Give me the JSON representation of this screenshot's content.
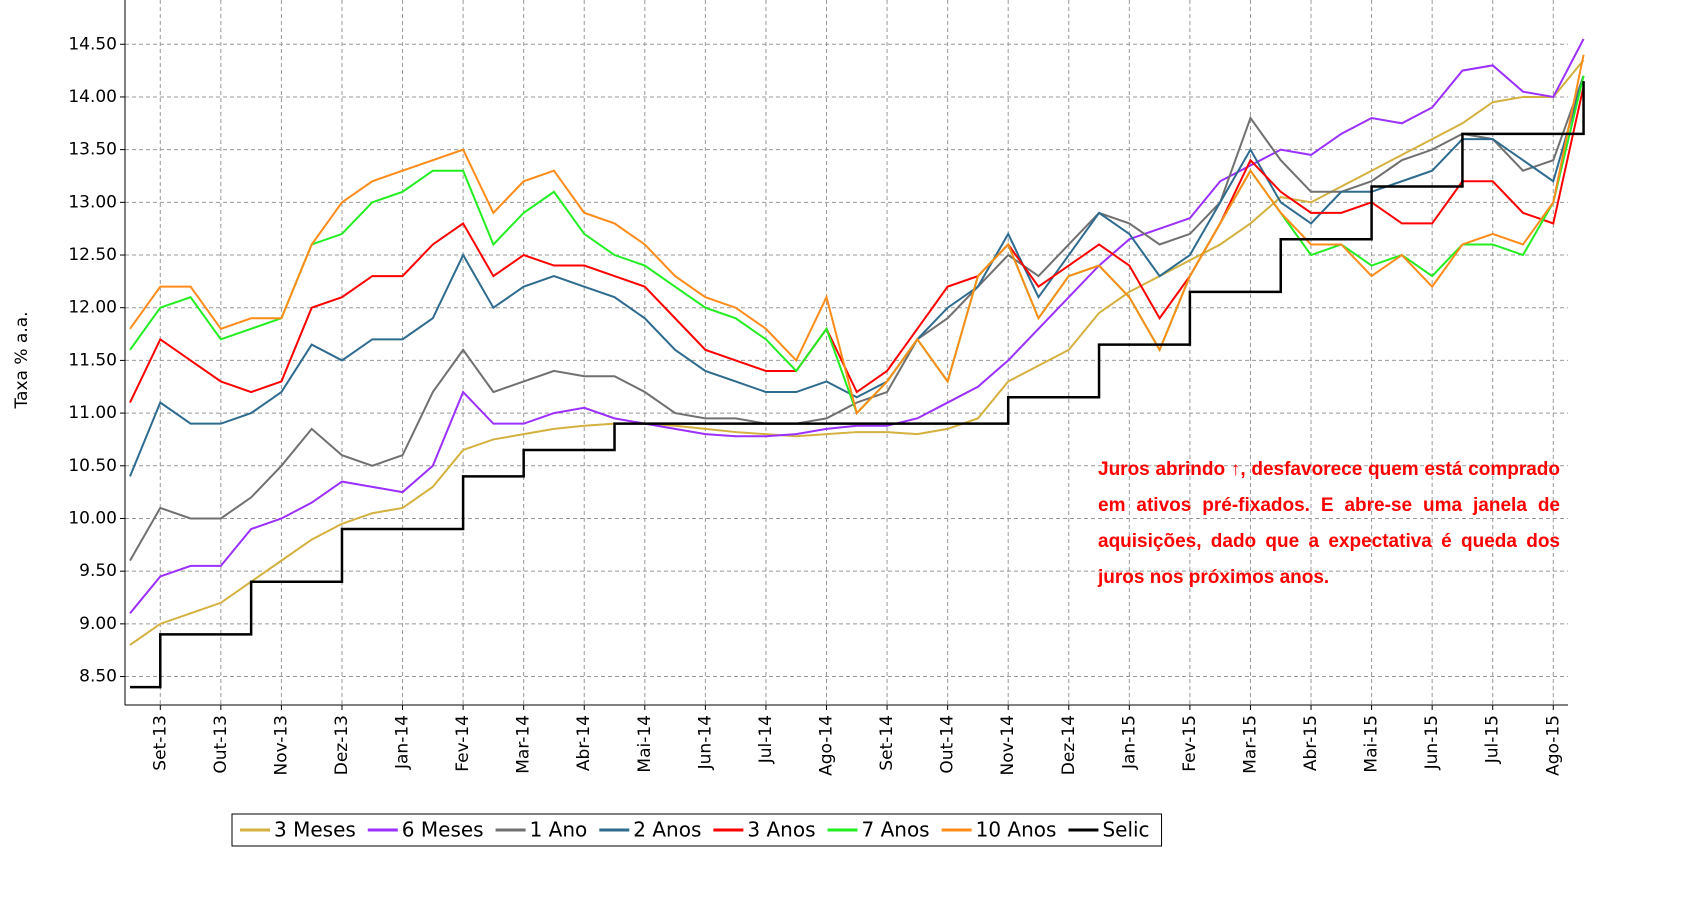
{
  "chart_data": {
    "type": "line",
    "ylabel": "Taxa % a.a.",
    "annotation": "Juros abrindo ↑, desfavorece quem está comprado em ativos pré-fixados. E abre-se uma janela de aquisições, dado que a expectativa é queda dos juros nos próximos anos.",
    "categories": [
      null,
      "Set-13",
      null,
      "Out-13",
      null,
      "Nov-13",
      null,
      "Dez-13",
      null,
      "Jan-14",
      null,
      "Fev-14",
      null,
      "Mar-14",
      null,
      "Abr-14",
      null,
      "Mai-14",
      null,
      "Jun-14",
      null,
      "Jul-14",
      null,
      "Ago-14",
      null,
      "Set-14",
      null,
      "Out-14",
      null,
      "Nov-14",
      null,
      "Dez-14",
      null,
      "Jan-15",
      null,
      "Fev-15",
      null,
      "Mar-15",
      null,
      "Abr-15",
      null,
      "Mai-15",
      null,
      "Jun-15",
      null,
      "Jul-15",
      null,
      "Ago-15",
      null
    ],
    "series": [
      {
        "name": "3 Meses",
        "color": "#d4b13f",
        "values": [
          8.8,
          9.0,
          9.1,
          9.2,
          9.4,
          9.6,
          9.8,
          9.95,
          10.05,
          10.1,
          10.3,
          10.65,
          10.75,
          10.8,
          10.85,
          10.88,
          10.9,
          10.9,
          10.88,
          10.85,
          10.82,
          10.8,
          10.78,
          10.8,
          10.82,
          10.82,
          10.8,
          10.85,
          10.95,
          11.3,
          11.45,
          11.6,
          11.95,
          12.15,
          12.3,
          12.45,
          12.6,
          12.8,
          13.05,
          13.0,
          13.15,
          13.3,
          13.45,
          13.6,
          13.75,
          13.95,
          14.0,
          14.0,
          14.35
        ]
      },
      {
        "name": "6 Meses",
        "color": "#9b30ff",
        "values": [
          9.1,
          9.45,
          9.55,
          9.55,
          9.9,
          10.0,
          10.15,
          10.35,
          10.3,
          10.25,
          10.5,
          11.2,
          10.9,
          10.9,
          11.0,
          11.05,
          10.95,
          10.9,
          10.85,
          10.8,
          10.78,
          10.78,
          10.8,
          10.85,
          10.88,
          10.88,
          10.95,
          11.1,
          11.25,
          11.5,
          11.8,
          12.1,
          12.4,
          12.65,
          12.75,
          12.85,
          13.2,
          13.35,
          13.5,
          13.45,
          13.65,
          13.8,
          13.75,
          13.9,
          14.25,
          14.3,
          14.05,
          14.0,
          14.55
        ]
      },
      {
        "name": "1 Ano",
        "color": "#707070",
        "values": [
          9.6,
          10.1,
          10.0,
          10.0,
          10.2,
          10.5,
          10.85,
          10.6,
          10.5,
          10.6,
          11.2,
          11.6,
          11.2,
          11.3,
          11.4,
          11.35,
          11.35,
          11.2,
          11.0,
          10.95,
          10.95,
          10.9,
          10.9,
          10.95,
          11.1,
          11.2,
          11.7,
          11.9,
          12.2,
          12.5,
          12.3,
          12.6,
          12.9,
          12.8,
          12.6,
          12.7,
          13.0,
          13.8,
          13.4,
          13.1,
          13.1,
          13.2,
          13.4,
          13.5,
          13.65,
          13.6,
          13.3,
          13.4,
          14.2
        ]
      },
      {
        "name": "2 Anos",
        "color": "#2e6b8f",
        "values": [
          10.4,
          11.1,
          10.9,
          10.9,
          11.0,
          11.2,
          11.65,
          11.5,
          11.7,
          11.7,
          11.9,
          12.5,
          12.0,
          12.2,
          12.3,
          12.2,
          12.1,
          11.9,
          11.6,
          11.4,
          11.3,
          11.2,
          11.2,
          11.3,
          11.15,
          11.3,
          11.7,
          12.0,
          12.2,
          12.7,
          12.1,
          12.5,
          12.9,
          12.7,
          12.3,
          12.5,
          13.0,
          13.5,
          13.0,
          12.8,
          13.1,
          13.1,
          13.2,
          13.3,
          13.6,
          13.6,
          13.4,
          13.2,
          14.2
        ]
      },
      {
        "name": "3 Anos",
        "color": "#ff0000",
        "values": [
          11.1,
          11.7,
          11.5,
          11.3,
          11.2,
          11.3,
          12.0,
          12.1,
          12.3,
          12.3,
          12.6,
          12.8,
          12.3,
          12.5,
          12.4,
          12.4,
          12.3,
          12.2,
          11.9,
          11.6,
          11.5,
          11.4,
          11.4,
          11.8,
          11.2,
          11.4,
          11.8,
          12.2,
          12.3,
          12.6,
          12.2,
          12.4,
          12.6,
          12.4,
          11.9,
          12.3,
          12.8,
          13.4,
          13.1,
          12.9,
          12.9,
          13.0,
          12.8,
          12.8,
          13.2,
          13.2,
          12.9,
          12.8,
          14.1
        ]
      },
      {
        "name": "7 Anos",
        "color": "#22ee22",
        "values": [
          11.6,
          12.0,
          12.1,
          11.7,
          11.8,
          11.9,
          12.6,
          12.7,
          13.0,
          13.1,
          13.3,
          13.3,
          12.6,
          12.9,
          13.1,
          12.7,
          12.5,
          12.4,
          12.2,
          12.0,
          11.9,
          11.7,
          11.4,
          11.8,
          11.0,
          11.3,
          11.7,
          11.3,
          12.3,
          12.6,
          11.9,
          12.3,
          12.4,
          12.1,
          11.6,
          12.3,
          12.8,
          13.3,
          12.9,
          12.5,
          12.6,
          12.4,
          12.5,
          12.3,
          12.6,
          12.6,
          12.5,
          13.0,
          14.2
        ]
      },
      {
        "name": "10 Anos",
        "color": "#ff8c1a",
        "values": [
          11.8,
          12.2,
          12.2,
          11.8,
          11.9,
          11.9,
          12.6,
          13.0,
          13.2,
          13.3,
          13.4,
          13.5,
          12.9,
          13.2,
          13.3,
          12.9,
          12.8,
          12.6,
          12.3,
          12.1,
          12.0,
          11.8,
          11.5,
          12.1,
          11.0,
          11.3,
          11.7,
          11.3,
          12.3,
          12.6,
          11.9,
          12.3,
          12.4,
          12.1,
          11.6,
          12.3,
          12.8,
          13.3,
          12.9,
          12.6,
          12.6,
          12.3,
          12.5,
          12.2,
          12.6,
          12.7,
          12.6,
          13.0,
          14.4
        ]
      },
      {
        "name": "Selic",
        "color": "#000000",
        "step": true,
        "values": [
          8.4,
          8.9,
          8.9,
          8.9,
          9.4,
          9.4,
          9.4,
          9.9,
          9.9,
          9.9,
          9.9,
          10.4,
          10.4,
          10.65,
          10.65,
          10.65,
          10.9,
          10.9,
          10.9,
          10.9,
          10.9,
          10.9,
          10.9,
          10.9,
          10.9,
          10.9,
          10.9,
          10.9,
          10.9,
          11.15,
          11.15,
          11.15,
          11.65,
          11.65,
          11.65,
          12.15,
          12.15,
          12.15,
          12.65,
          12.65,
          12.65,
          13.15,
          13.15,
          13.15,
          13.65,
          13.65,
          13.65,
          13.65,
          14.15
        ]
      }
    ],
    "ylim": [
      8.23,
      14.92
    ],
    "yticks": [
      {
        "value": 8.5,
        "label": "8.50"
      },
      {
        "value": 9,
        "label": "9.00"
      },
      {
        "value": 9.5,
        "label": "9.50"
      },
      {
        "value": 10,
        "label": "10.00"
      },
      {
        "value": 10.5,
        "label": "10.50"
      },
      {
        "value": 11,
        "label": "11.00"
      },
      {
        "value": 11.5,
        "label": "11.50"
      },
      {
        "value": 12,
        "label": "12.00"
      },
      {
        "value": 12.5,
        "label": "12.50"
      },
      {
        "value": 13,
        "label": "13.00"
      },
      {
        "value": 13.5,
        "label": "13.50"
      },
      {
        "value": 14,
        "label": "14.00"
      },
      {
        "value": 14.5,
        "label": "14.50"
      }
    ],
    "grid": true
  }
}
